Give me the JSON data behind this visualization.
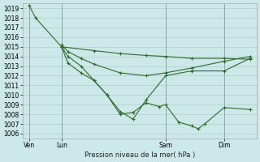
{
  "title": "Pression niveau de la mer( hPa )",
  "bg_color": "#cce8e8",
  "grid_color": "#b0cccc",
  "line_color": "#2d6a2d",
  "ylim": [
    1005.5,
    1019.5
  ],
  "yticks": [
    1006,
    1007,
    1008,
    1009,
    1010,
    1011,
    1012,
    1013,
    1014,
    1015,
    1016,
    1017,
    1018,
    1019
  ],
  "xtick_labels": [
    "Ven",
    "Lun",
    "Sam",
    "Dim"
  ],
  "xtick_positions": [
    0.5,
    3.0,
    11.0,
    15.5
  ],
  "xlim": [
    0,
    18
  ],
  "vlines": [
    0.5,
    3.0,
    11.0,
    15.5
  ],
  "series": [
    {
      "x": [
        0.5,
        1.0,
        3.0,
        3.5,
        4.5,
        5.5,
        6.5,
        7.5,
        8.5,
        9.5,
        10.5,
        11.0,
        12.0,
        13.0,
        13.5,
        14.0,
        15.5,
        17.5
      ],
      "y": [
        1019.3,
        1018.0,
        1015.0,
        1013.3,
        1012.3,
        1011.5,
        1010.0,
        1008.0,
        1008.2,
        1009.2,
        1008.8,
        1009.0,
        1007.2,
        1006.8,
        1006.5,
        1007.0,
        1008.7,
        1008.5
      ]
    },
    {
      "x": [
        3.0,
        3.5,
        4.5,
        5.5,
        6.5,
        7.5,
        8.5,
        9.5,
        11.0,
        13.0,
        15.5,
        17.5
      ],
      "y": [
        1015.0,
        1014.0,
        1013.0,
        1011.5,
        1010.0,
        1008.3,
        1007.5,
        1009.5,
        1012.0,
        1012.5,
        1012.5,
        1013.8
      ]
    },
    {
      "x": [
        3.0,
        3.5,
        4.5,
        5.5,
        7.5,
        9.5,
        11.0,
        13.0,
        15.5,
        17.5
      ],
      "y": [
        1015.2,
        1014.5,
        1013.8,
        1013.2,
        1012.3,
        1012.0,
        1012.3,
        1012.8,
        1013.5,
        1014.0
      ]
    },
    {
      "x": [
        3.0,
        5.5,
        7.5,
        9.5,
        11.0,
        13.0,
        15.5,
        17.5
      ],
      "y": [
        1015.0,
        1014.6,
        1014.3,
        1014.1,
        1014.0,
        1013.8,
        1013.8,
        1013.7
      ]
    }
  ]
}
